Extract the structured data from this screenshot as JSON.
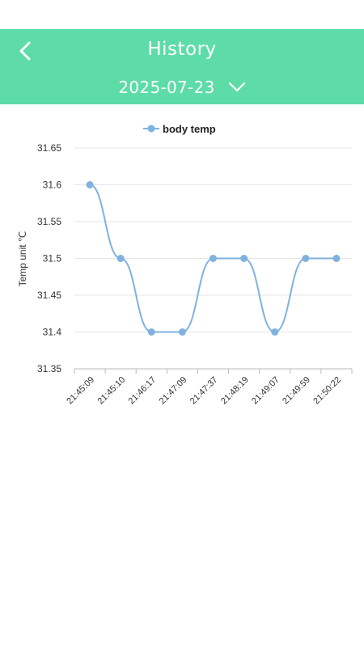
{
  "header": {
    "title": "History",
    "date": "2025-07-23",
    "back_icon": "chevron-left-icon",
    "dropdown_icon": "chevron-down-icon",
    "bg_color": "#5ddca8"
  },
  "chart_data": {
    "type": "line",
    "title": "",
    "ylabel": "Temp unit ℃",
    "xlabel": "",
    "legend": "top-center",
    "grid": true,
    "ylim": [
      31.35,
      31.65
    ],
    "yticks": [
      "31.65",
      "31.6",
      "31.55",
      "31.5",
      "31.45",
      "31.4",
      "31.35"
    ],
    "categories": [
      "21:45:09",
      "21:45:10",
      "21:46:17",
      "21:47:09",
      "21:47:37",
      "21:48:19",
      "21:49:07",
      "21:49:59",
      "21:50:22"
    ],
    "series": [
      {
        "name": "body temp",
        "color": "#7fb2de",
        "values": [
          31.6,
          31.5,
          31.4,
          31.4,
          31.5,
          31.5,
          31.4,
          31.5,
          31.5
        ]
      }
    ]
  }
}
